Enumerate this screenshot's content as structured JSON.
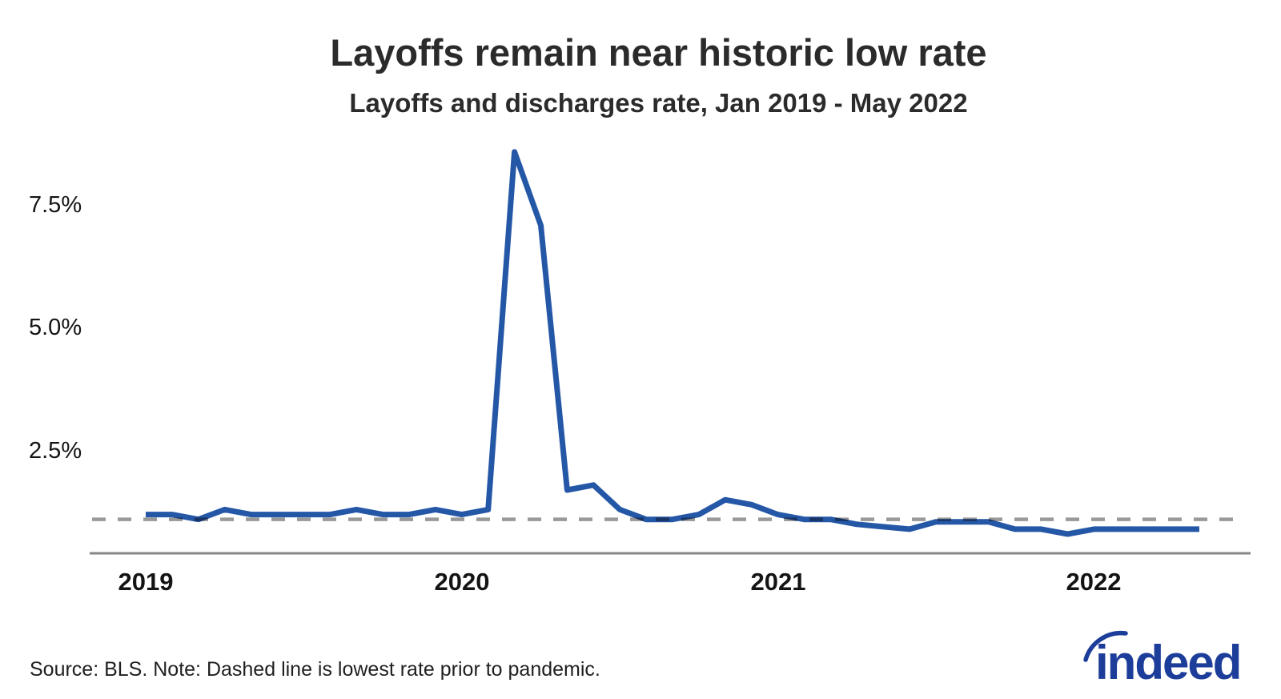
{
  "header": {
    "title": "Layoffs remain near historic low rate",
    "subtitle": "Layoffs and discharges rate, Jan 2019 - May 2022"
  },
  "chart_data": {
    "type": "line",
    "title": "Layoffs remain near historic low rate",
    "subtitle": "Layoffs and discharges rate, Jan 2019 - May 2022",
    "unit": "percent",
    "grid": false,
    "legend": false,
    "ylim": [
      0.4,
      9.0
    ],
    "axis_color": "#878787",
    "x": [
      "Jan 2019",
      "Feb 2019",
      "Mar 2019",
      "Apr 2019",
      "May 2019",
      "Jun 2019",
      "Jul 2019",
      "Aug 2019",
      "Sep 2019",
      "Oct 2019",
      "Nov 2019",
      "Dec 2019",
      "Jan 2020",
      "Feb 2020",
      "Mar 2020",
      "Apr 2020",
      "May 2020",
      "Jun 2020",
      "Jul 2020",
      "Aug 2020",
      "Sep 2020",
      "Oct 2020",
      "Nov 2020",
      "Dec 2020",
      "Jan 2021",
      "Feb 2021",
      "Mar 2021",
      "Apr 2021",
      "May 2021",
      "Jun 2021",
      "Jul 2021",
      "Aug 2021",
      "Sep 2021",
      "Oct 2021",
      "Nov 2021",
      "Dec 2021",
      "Jan 2022",
      "Feb 2022",
      "Mar 2022",
      "Apr 2022",
      "May 2022"
    ],
    "series": [
      {
        "name": "Layoffs and discharges rate",
        "color": "#2557a7",
        "values": [
          1.2,
          1.2,
          1.1,
          1.3,
          1.2,
          1.2,
          1.2,
          1.2,
          1.3,
          1.2,
          1.2,
          1.3,
          1.2,
          1.3,
          8.6,
          7.1,
          1.7,
          1.8,
          1.3,
          1.1,
          1.1,
          1.2,
          1.5,
          1.4,
          1.2,
          1.1,
          1.1,
          1.0,
          0.95,
          0.9,
          1.05,
          1.05,
          1.05,
          0.9,
          0.9,
          0.8,
          0.9,
          0.9,
          0.9,
          0.9,
          0.9
        ]
      }
    ],
    "reference_line": {
      "value": 1.1,
      "style": "dashed",
      "color": "#999999",
      "label": "Lowest rate prior to pandemic"
    },
    "yticks": [
      {
        "value": 7.5,
        "label": "7.5%"
      },
      {
        "value": 5.0,
        "label": "5.0%"
      },
      {
        "value": 2.5,
        "label": "2.5%"
      }
    ],
    "xticks": [
      {
        "label": "2019",
        "month_index": 0
      },
      {
        "label": "2020",
        "month_index": 12
      },
      {
        "label": "2021",
        "month_index": 24
      },
      {
        "label": "2022",
        "month_index": 36
      }
    ]
  },
  "footer": {
    "source_note": "Source: BLS. Note: Dashed line is lowest rate prior to pandemic.",
    "logo_text": "indeed",
    "logo_color": "#1c3d99"
  }
}
